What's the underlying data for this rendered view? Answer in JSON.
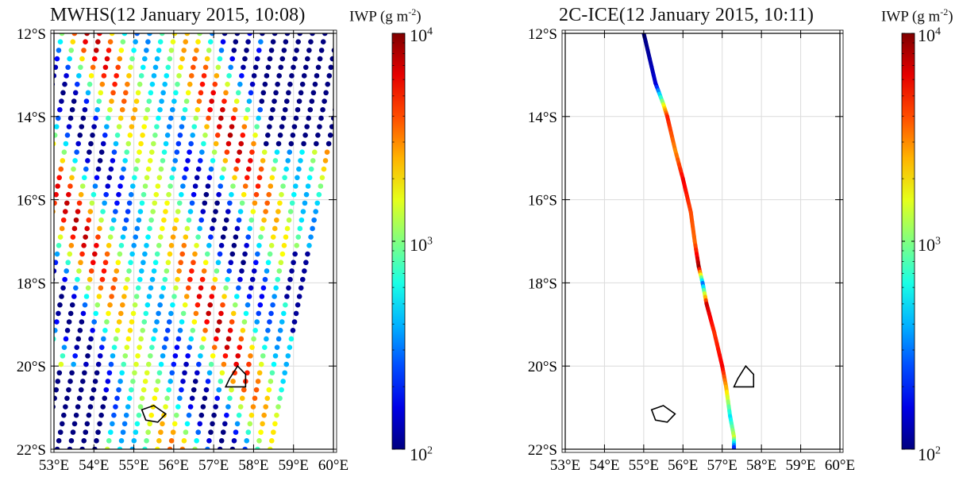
{
  "panels": [
    {
      "title": "MWHS(12 January 2015, 10:08)",
      "colorbar_label": "IWP (g m",
      "colorbar_label_exp": "-2",
      "colorbar_label_close": ")",
      "colorbar_ticks": [
        {
          "base": "10",
          "exp": "4"
        },
        {
          "base": "10",
          "exp": "3"
        },
        {
          "base": "10",
          "exp": "2"
        }
      ]
    },
    {
      "title": "2C-ICE(12 January 2015, 10:11)",
      "colorbar_label": "IWP (g m",
      "colorbar_label_exp": "-2",
      "colorbar_label_close": ")",
      "colorbar_ticks": [
        {
          "base": "10",
          "exp": "4"
        },
        {
          "base": "10",
          "exp": "3"
        },
        {
          "base": "10",
          "exp": "2"
        }
      ]
    }
  ],
  "chart_data": [
    {
      "type": "scatter",
      "title": "MWHS(12 January 2015, 10:08)",
      "xlabel": "",
      "ylabel": "",
      "xlim": [
        53,
        60
      ],
      "ylim": [
        -22,
        -12
      ],
      "x_ticks": [
        "53°E",
        "54°E",
        "55°E",
        "56°E",
        "57°E",
        "58°E",
        "59°E",
        "60°E"
      ],
      "y_ticks": [
        "12°S",
        "14°S",
        "16°S",
        "18°S",
        "20°S",
        "22°S"
      ],
      "colorbar": {
        "label": "IWP (g m-2)",
        "scale": "log",
        "range": [
          100,
          10000
        ],
        "colormap": "jet"
      },
      "swath": {
        "scan_lines": 23,
        "points_per_line": 50,
        "lon_at_12S": [
          53.2,
          60.1
        ],
        "lon_shift_to_22S": -2.0
      },
      "observed_iwp_range": [
        100,
        10000
      ],
      "grid": true
    },
    {
      "type": "line",
      "title": "2C-ICE(12 January 2015, 10:11)",
      "xlabel": "",
      "ylabel": "",
      "xlim": [
        53,
        60
      ],
      "ylim": [
        -22,
        -12
      ],
      "x_ticks": [
        "53°E",
        "54°E",
        "55°E",
        "56°E",
        "57°E",
        "58°E",
        "59°E",
        "60°E"
      ],
      "y_ticks": [
        "12°S",
        "14°S",
        "16°S",
        "18°S",
        "20°S",
        "22°S"
      ],
      "colorbar": {
        "label": "IWP (g m-2)",
        "scale": "log",
        "range": [
          100,
          10000
        ],
        "colormap": "jet"
      },
      "track": [
        {
          "lon": 55.0,
          "lat": -12.0,
          "iwp": 100
        },
        {
          "lon": 55.3,
          "lat": -13.2,
          "iwp": 150
        },
        {
          "lon": 55.5,
          "lat": -13.7,
          "iwp": 1500
        },
        {
          "lon": 55.6,
          "lat": -14.0,
          "iwp": 5000
        },
        {
          "lon": 55.8,
          "lat": -14.8,
          "iwp": 3000
        },
        {
          "lon": 56.0,
          "lat": -15.5,
          "iwp": 6000
        },
        {
          "lon": 56.2,
          "lat": -16.3,
          "iwp": 4000
        },
        {
          "lon": 56.3,
          "lat": -17.0,
          "iwp": 3500
        },
        {
          "lon": 56.4,
          "lat": -17.6,
          "iwp": 9000
        },
        {
          "lon": 56.5,
          "lat": -18.0,
          "iwp": 300
        },
        {
          "lon": 56.6,
          "lat": -18.5,
          "iwp": 7000
        },
        {
          "lon": 56.8,
          "lat": -19.2,
          "iwp": 4500
        },
        {
          "lon": 57.0,
          "lat": -20.0,
          "iwp": 6000
        },
        {
          "lon": 57.1,
          "lat": -20.5,
          "iwp": 2500
        },
        {
          "lon": 57.2,
          "lat": -21.2,
          "iwp": 500
        },
        {
          "lon": 57.3,
          "lat": -21.7,
          "iwp": 1500
        },
        {
          "lon": 57.3,
          "lat": -22.0,
          "iwp": 150
        }
      ],
      "grid": true
    }
  ],
  "islands": [
    {
      "name_hidden": true,
      "points": [
        [
          55.2,
          -21.05
        ],
        [
          55.5,
          -20.95
        ],
        [
          55.8,
          -21.15
        ],
        [
          55.6,
          -21.35
        ],
        [
          55.3,
          -21.3
        ]
      ]
    },
    {
      "name_hidden": true,
      "points": [
        [
          57.4,
          -20.3
        ],
        [
          57.6,
          -20.0
        ],
        [
          57.8,
          -20.2
        ],
        [
          57.8,
          -20.5
        ],
        [
          57.3,
          -20.5
        ]
      ]
    }
  ]
}
